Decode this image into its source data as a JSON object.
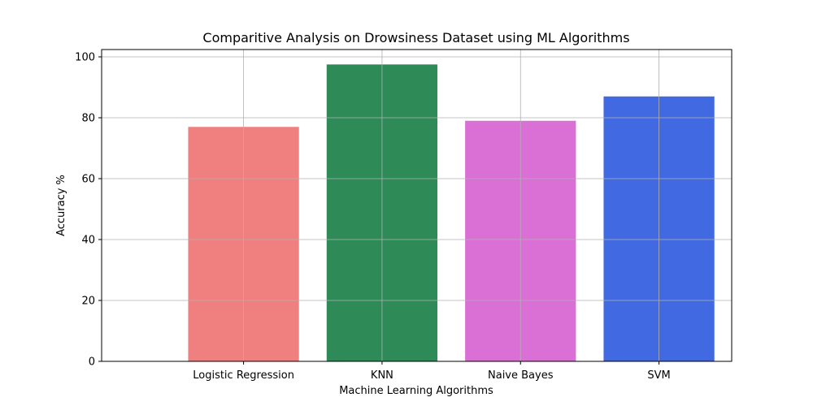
{
  "chart_data": {
    "type": "bar",
    "title": "Comparitive Analysis on Drowsiness Dataset using ML Algorithms",
    "xlabel": "Machine Learning Algorithms",
    "ylabel": "Accuracy %",
    "categories": [
      "Logistic Regression",
      "KNN",
      "Naive Bayes",
      "SVM"
    ],
    "values": [
      77,
      97.5,
      79,
      87
    ],
    "colors": [
      "#f08080",
      "#2e8b57",
      "#da70d6",
      "#4169e1"
    ],
    "ylim": [
      0,
      102.4
    ],
    "yticks": [
      0,
      20,
      40,
      60,
      80,
      100
    ],
    "grid": true,
    "legend": false
  }
}
